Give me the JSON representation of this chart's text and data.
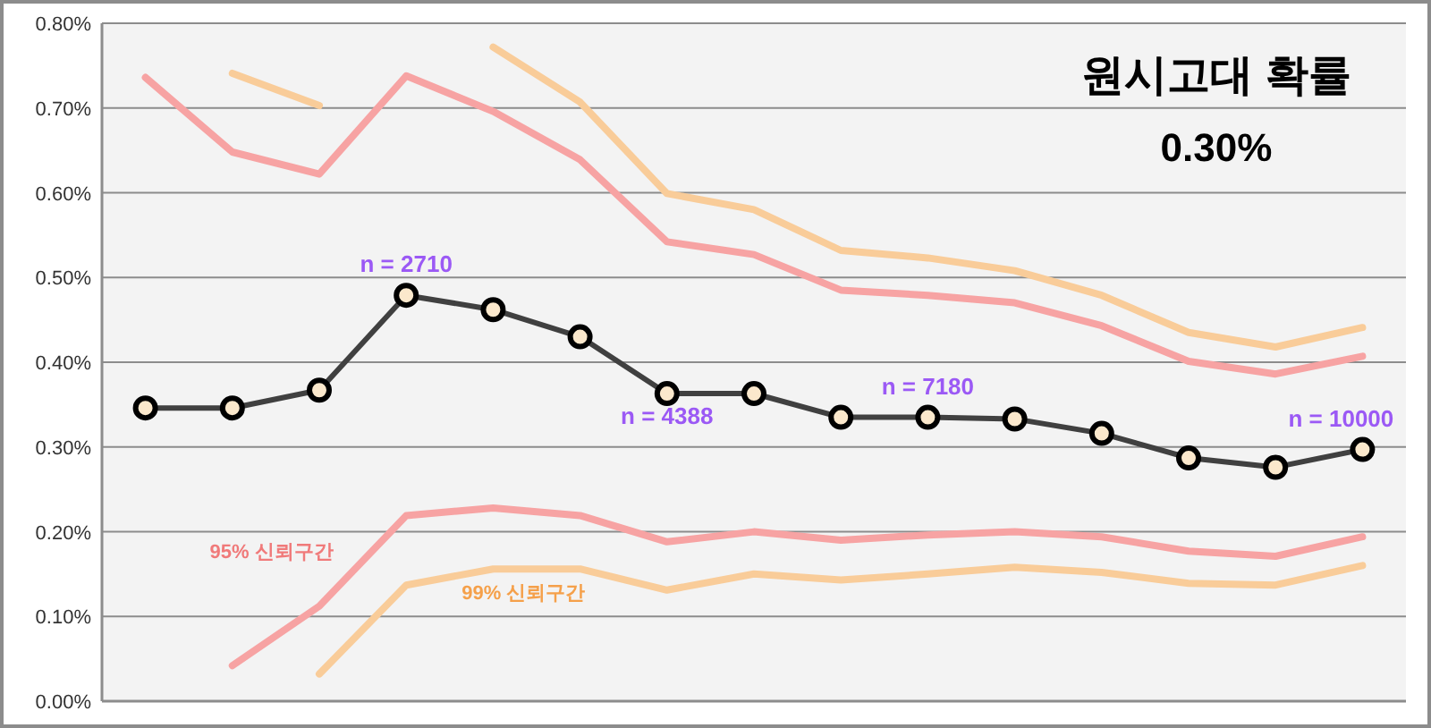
{
  "chart_data": {
    "type": "line",
    "title": "원시고대 확률",
    "subtitle": "0.30%",
    "categories": [
      null,
      null,
      null,
      null,
      null,
      null,
      null,
      null,
      null,
      null,
      null,
      null,
      null,
      null,
      null
    ],
    "series": [
      {
        "color": "#404040",
        "marker": "circle",
        "values": [
          0.346,
          0.346,
          0.367,
          0.479,
          0.462,
          0.43,
          0.363,
          0.363,
          0.335,
          0.335,
          0.333,
          0.316,
          0.287,
          0.276,
          0.297
        ]
      },
      {
        "color": "#f7a3a3",
        "marker": "none",
        "values": [
          0.736,
          0.648,
          0.622,
          0.738,
          0.696,
          0.639,
          0.542,
          0.527,
          0.485,
          0.479,
          0.47,
          0.443,
          0.401,
          0.386,
          0.407
        ]
      },
      {
        "name": "95% 신뢰구간",
        "color": "#f7a3a3",
        "marker": "none",
        "values": [
          null,
          0.042,
          0.112,
          0.219,
          0.228,
          0.219,
          0.188,
          0.2,
          0.19,
          0.196,
          0.2,
          0.194,
          0.177,
          0.171,
          0.194
        ]
      },
      {
        "color": "#f9cc99",
        "marker": "none",
        "values": [
          null,
          0.741,
          0.703,
          null,
          0.772,
          0.707,
          0.599,
          0.58,
          0.532,
          0.523,
          0.508,
          0.479,
          0.435,
          0.418,
          0.441
        ]
      },
      {
        "name": "99% 신뢰구간",
        "color": "#f9cc99",
        "marker": "none",
        "values": [
          null,
          null,
          0.032,
          0.137,
          0.156,
          0.156,
          0.131,
          0.15,
          0.143,
          0.15,
          0.158,
          0.152,
          0.139,
          0.137,
          0.16
        ]
      }
    ],
    "annotations": [
      "n = 2710",
      "n = 4388",
      "n = 7180",
      "n = 10000"
    ],
    "ylim": [
      0,
      0.8
    ],
    "yticks": [
      {
        "value": 0,
        "label": "0.00%"
      },
      {
        "value": 0.1,
        "label": "0.10%"
      },
      {
        "value": 0.2,
        "label": "0.20%"
      },
      {
        "value": 0.3,
        "label": "0.30%"
      },
      {
        "value": 0.4,
        "label": "0.40%"
      },
      {
        "value": 0.5,
        "label": "0.50%"
      },
      {
        "value": 0.6,
        "label": "0.60%"
      },
      {
        "value": 0.7,
        "label": "0.70%"
      },
      {
        "value": 0.8,
        "label": "0.80%"
      }
    ],
    "grid": "y",
    "legend": false,
    "line_style": "solid"
  }
}
